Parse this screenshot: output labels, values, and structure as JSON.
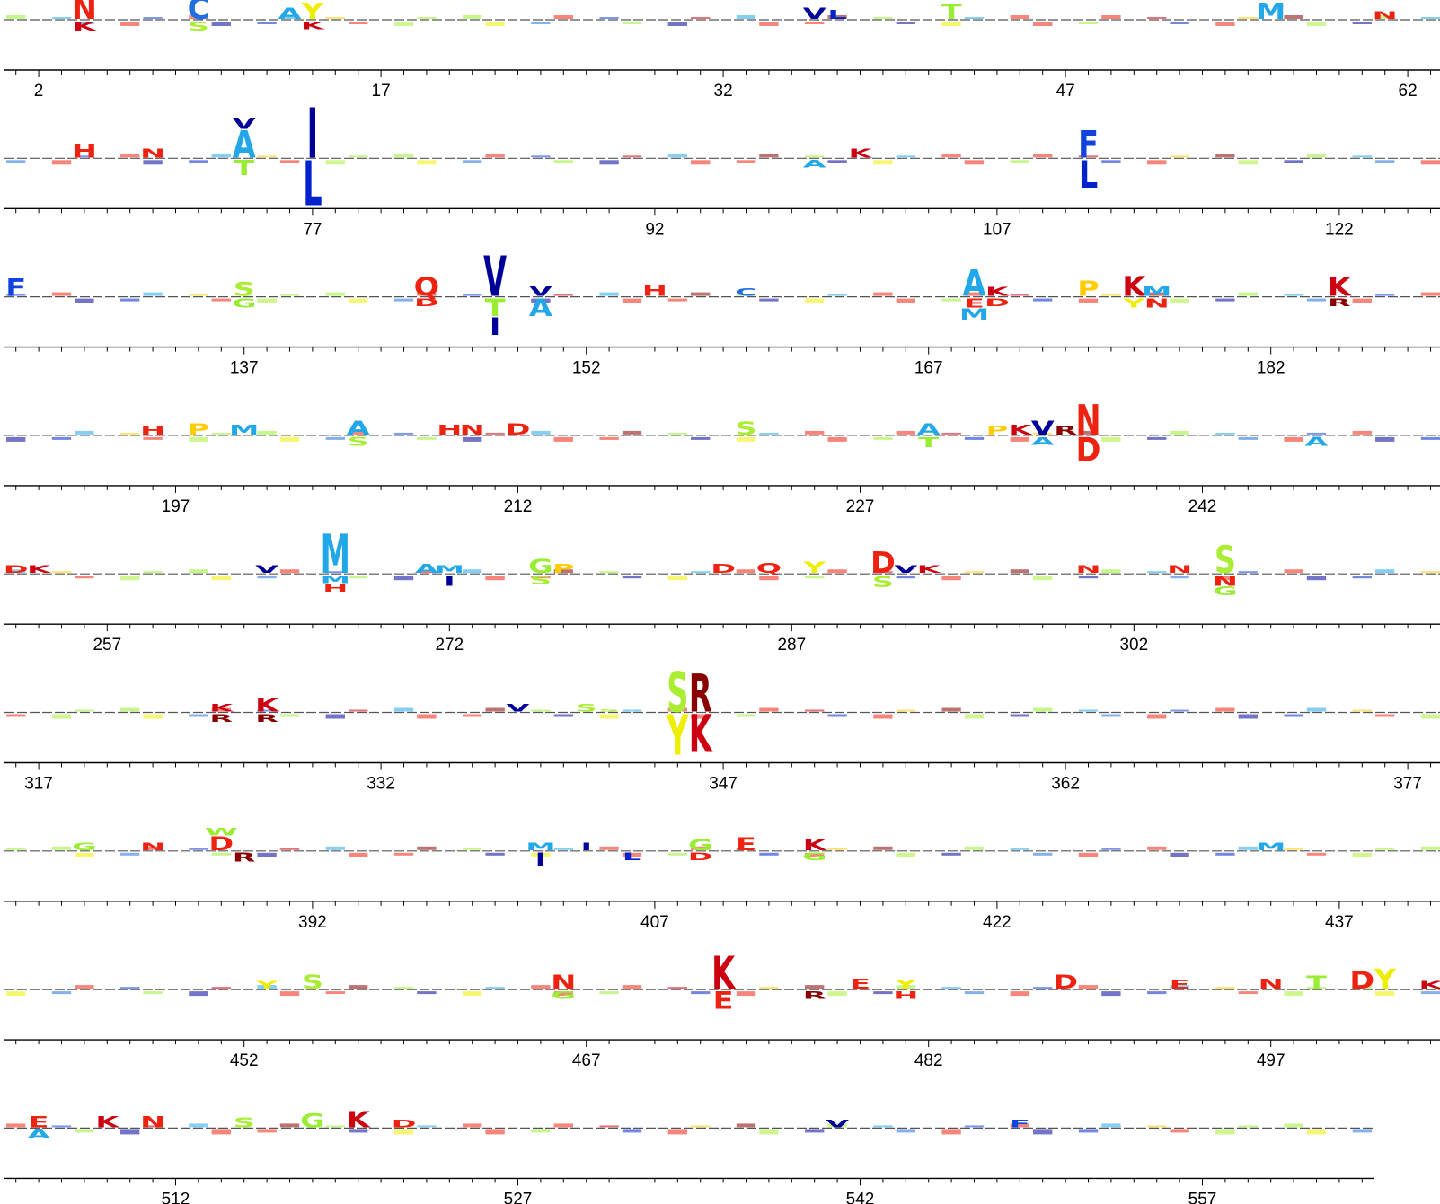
{
  "chart_data": {
    "type": "sequence-logo",
    "title": "",
    "xlabel": "",
    "ylabel": "",
    "tick_labels": [
      "2",
      "17",
      "32",
      "47",
      "62",
      "77",
      "92",
      "107",
      "122",
      "137",
      "152",
      "167",
      "182",
      "197",
      "212",
      "227",
      "242",
      "257",
      "272",
      "287",
      "302",
      "317",
      "332",
      "347",
      "362",
      "377",
      "392",
      "407",
      "422",
      "437",
      "452",
      "467",
      "482",
      "497",
      "512",
      "527",
      "542",
      "557"
    ],
    "rows": [
      {
        "first_position": 1,
        "label_positions": [
          2,
          17,
          32,
          47,
          62
        ]
      },
      {
        "first_position": 64,
        "label_positions": [
          77,
          92,
          107,
          122
        ]
      },
      {
        "first_position": 127,
        "label_positions": [
          137,
          152,
          167,
          182
        ]
      },
      {
        "first_position": 190,
        "label_positions": [
          197,
          212,
          227,
          242
        ]
      },
      {
        "first_position": 253,
        "label_positions": [
          257,
          272,
          287,
          302
        ]
      },
      {
        "first_position": 316,
        "label_positions": [
          317,
          332,
          347,
          362,
          377
        ]
      },
      {
        "first_position": 379,
        "label_positions": [
          392,
          407,
          422,
          437
        ]
      },
      {
        "first_position": 442,
        "label_positions": [
          452,
          467,
          482,
          497
        ]
      },
      {
        "first_position": 505,
        "last_position": 564,
        "label_positions": [
          512,
          527,
          542,
          557
        ]
      }
    ],
    "residue_colors": {
      "A": "#22a8e8",
      "C": "#1f6fe0",
      "D": "#ee2211",
      "E": "#ee2211",
      "F": "#1144dd",
      "G": "#99ee33",
      "H": "#ee2211",
      "I": "#000099",
      "K": "#cc0011",
      "L": "#0022cc",
      "M": "#22a8e8",
      "N": "#ee2211",
      "P": "#ffcc00",
      "Q": "#ee2211",
      "R": "#880000",
      "S": "#aaee33",
      "T": "#99ee33",
      "V": "#000099",
      "W": "#99ee33",
      "Y": "#eeee00"
    },
    "glyphs": [
      {
        "pos": 4,
        "letter": "N",
        "height": 0.85
      },
      {
        "pos": 4,
        "letter": "K",
        "height": -0.35
      },
      {
        "pos": 9,
        "letter": "C",
        "height": 0.85
      },
      {
        "pos": 9,
        "letter": "S",
        "height": -0.35
      },
      {
        "pos": 13,
        "letter": "A",
        "height": 0.45
      },
      {
        "pos": 14,
        "letter": "Y",
        "height": 0.65
      },
      {
        "pos": 14,
        "letter": "K",
        "height": -0.3
      },
      {
        "pos": 36,
        "letter": "V",
        "height": 0.45
      },
      {
        "pos": 37,
        "letter": "L",
        "height": 0.35
      },
      {
        "pos": 42,
        "letter": "T",
        "height": 0.6
      },
      {
        "pos": 56,
        "letter": "M",
        "height": 0.65
      },
      {
        "pos": 61,
        "letter": "N",
        "height": 0.3
      },
      {
        "pos": 67,
        "letter": "H",
        "height": 0.55
      },
      {
        "pos": 70,
        "letter": "N",
        "height": 0.35
      },
      {
        "pos": 74,
        "letter": "A",
        "height": 1.1
      },
      {
        "pos": 74,
        "letter": "V",
        "height": 0.45
      },
      {
        "pos": 74,
        "letter": "T",
        "height": -0.6
      },
      {
        "pos": 77,
        "letter": "I",
        "height": 2.0
      },
      {
        "pos": 77,
        "letter": "L",
        "height": -1.8
      },
      {
        "pos": 99,
        "letter": "A",
        "height": -0.3
      },
      {
        "pos": 101,
        "letter": "K",
        "height": 0.35
      },
      {
        "pos": 111,
        "letter": "F",
        "height": 1.1
      },
      {
        "pos": 111,
        "letter": "L",
        "height": -1.1
      },
      {
        "pos": 127,
        "letter": "F",
        "height": 0.7
      },
      {
        "pos": 137,
        "letter": "S",
        "height": 0.55
      },
      {
        "pos": 137,
        "letter": "G",
        "height": -0.35
      },
      {
        "pos": 145,
        "letter": "Q",
        "height": 0.75
      },
      {
        "pos": 145,
        "letter": "D",
        "height": -0.3
      },
      {
        "pos": 148,
        "letter": "V",
        "height": 1.6
      },
      {
        "pos": 148,
        "letter": "T",
        "height": -0.7
      },
      {
        "pos": 148,
        "letter": "I",
        "height": -0.7
      },
      {
        "pos": 150,
        "letter": "V",
        "height": 0.4
      },
      {
        "pos": 150,
        "letter": "A",
        "height": -0.7
      },
      {
        "pos": 155,
        "letter": "H",
        "height": 0.45
      },
      {
        "pos": 159,
        "letter": "C",
        "height": 0.3
      },
      {
        "pos": 169,
        "letter": "A",
        "height": 1.05
      },
      {
        "pos": 169,
        "letter": "E",
        "height": -0.35
      },
      {
        "pos": 169,
        "letter": "M",
        "height": -0.45
      },
      {
        "pos": 170,
        "letter": "K",
        "height": 0.35
      },
      {
        "pos": 170,
        "letter": "D",
        "height": -0.3
      },
      {
        "pos": 174,
        "letter": "P",
        "height": 0.6
      },
      {
        "pos": 176,
        "letter": "K",
        "height": 0.8
      },
      {
        "pos": 176,
        "letter": "Y",
        "height": -0.35
      },
      {
        "pos": 177,
        "letter": "M",
        "height": 0.4
      },
      {
        "pos": 177,
        "letter": "N",
        "height": -0.35
      },
      {
        "pos": 185,
        "letter": "K",
        "height": 0.75
      },
      {
        "pos": 185,
        "letter": "R",
        "height": -0.3
      },
      {
        "pos": 196,
        "letter": "H",
        "height": 0.35
      },
      {
        "pos": 198,
        "letter": "P",
        "height": 0.45
      },
      {
        "pos": 200,
        "letter": "M",
        "height": 0.4
      },
      {
        "pos": 205,
        "letter": "A",
        "height": 0.55
      },
      {
        "pos": 205,
        "letter": "S",
        "height": -0.35
      },
      {
        "pos": 209,
        "letter": "H",
        "height": 0.4
      },
      {
        "pos": 210,
        "letter": "N",
        "height": 0.4
      },
      {
        "pos": 212,
        "letter": "D",
        "height": 0.45
      },
      {
        "pos": 222,
        "letter": "S",
        "height": 0.5
      },
      {
        "pos": 230,
        "letter": "A",
        "height": 0.45
      },
      {
        "pos": 230,
        "letter": "T",
        "height": -0.4
      },
      {
        "pos": 233,
        "letter": "P",
        "height": 0.35
      },
      {
        "pos": 234,
        "letter": "K",
        "height": 0.4
      },
      {
        "pos": 235,
        "letter": "V",
        "height": 0.55
      },
      {
        "pos": 235,
        "letter": "A",
        "height": -0.3
      },
      {
        "pos": 236,
        "letter": "R",
        "height": 0.35
      },
      {
        "pos": 237,
        "letter": "N",
        "height": 1.2
      },
      {
        "pos": 237,
        "letter": "D",
        "height": -0.95
      },
      {
        "pos": 247,
        "letter": "A",
        "height": -0.35
      },
      {
        "pos": 253,
        "letter": "D",
        "height": 0.3
      },
      {
        "pos": 254,
        "letter": "K",
        "height": 0.3
      },
      {
        "pos": 264,
        "letter": "V",
        "height": 0.3
      },
      {
        "pos": 267,
        "letter": "M",
        "height": 1.55
      },
      {
        "pos": 267,
        "letter": "M",
        "height": -0.3
      },
      {
        "pos": 267,
        "letter": "H",
        "height": -0.3
      },
      {
        "pos": 271,
        "letter": "A",
        "height": 0.35
      },
      {
        "pos": 272,
        "letter": "M",
        "height": 0.3
      },
      {
        "pos": 272,
        "letter": "I",
        "height": -0.4
      },
      {
        "pos": 276,
        "letter": "G",
        "height": 0.55
      },
      {
        "pos": 276,
        "letter": "S",
        "height": -0.35
      },
      {
        "pos": 277,
        "letter": "P",
        "height": 0.35
      },
      {
        "pos": 284,
        "letter": "D",
        "height": 0.35
      },
      {
        "pos": 286,
        "letter": "Q",
        "height": 0.4
      },
      {
        "pos": 288,
        "letter": "Y",
        "height": 0.45
      },
      {
        "pos": 291,
        "letter": "D",
        "height": 0.85
      },
      {
        "pos": 291,
        "letter": "S",
        "height": -0.45
      },
      {
        "pos": 292,
        "letter": "V",
        "height": 0.3
      },
      {
        "pos": 293,
        "letter": "K",
        "height": 0.3
      },
      {
        "pos": 300,
        "letter": "N",
        "height": 0.3
      },
      {
        "pos": 304,
        "letter": "N",
        "height": 0.3
      },
      {
        "pos": 306,
        "letter": "S",
        "height": 1.1
      },
      {
        "pos": 306,
        "letter": "N",
        "height": -0.4
      },
      {
        "pos": 306,
        "letter": "G",
        "height": -0.35
      },
      {
        "pos": 325,
        "letter": "K",
        "height": 0.3
      },
      {
        "pos": 325,
        "letter": "R",
        "height": -0.3
      },
      {
        "pos": 327,
        "letter": "K",
        "height": 0.55
      },
      {
        "pos": 327,
        "letter": "R",
        "height": -0.3
      },
      {
        "pos": 338,
        "letter": "V",
        "height": 0.3
      },
      {
        "pos": 341,
        "letter": "S",
        "height": 0.3
      },
      {
        "pos": 342,
        "letter": "S",
        "height": 0.1
      },
      {
        "pos": 345,
        "letter": "S",
        "height": 1.6
      },
      {
        "pos": 345,
        "letter": "Y",
        "height": -1.6
      },
      {
        "pos": 346,
        "letter": "R",
        "height": 1.5
      },
      {
        "pos": 346,
        "letter": "K",
        "height": -1.5
      },
      {
        "pos": 382,
        "letter": "G",
        "height": 0.3
      },
      {
        "pos": 385,
        "letter": "N",
        "height": 0.3
      },
      {
        "pos": 388,
        "letter": "D",
        "height": 0.55
      },
      {
        "pos": 388,
        "letter": "W",
        "height": 0.3
      },
      {
        "pos": 389,
        "letter": "R",
        "height": -0.35
      },
      {
        "pos": 402,
        "letter": "I",
        "height": -0.55
      },
      {
        "pos": 402,
        "letter": "M",
        "height": 0.3
      },
      {
        "pos": 404,
        "letter": "I",
        "height": 0.3
      },
      {
        "pos": 406,
        "letter": "L",
        "height": -0.3
      },
      {
        "pos": 409,
        "letter": "G",
        "height": 0.45
      },
      {
        "pos": 409,
        "letter": "D",
        "height": -0.3
      },
      {
        "pos": 411,
        "letter": "E",
        "height": 0.5
      },
      {
        "pos": 414,
        "letter": "K",
        "height": 0.45
      },
      {
        "pos": 414,
        "letter": "G",
        "height": -0.3
      },
      {
        "pos": 434,
        "letter": "M",
        "height": 0.3
      },
      {
        "pos": 453,
        "letter": "Y",
        "height": 0.3
      },
      {
        "pos": 455,
        "letter": "S",
        "height": 0.55
      },
      {
        "pos": 466,
        "letter": "N",
        "height": 0.55
      },
      {
        "pos": 466,
        "letter": "G",
        "height": -0.3
      },
      {
        "pos": 473,
        "letter": "K",
        "height": 1.3
      },
      {
        "pos": 473,
        "letter": "E",
        "height": -0.7
      },
      {
        "pos": 477,
        "letter": "R",
        "height": -0.3
      },
      {
        "pos": 479,
        "letter": "E",
        "height": 0.4
      },
      {
        "pos": 481,
        "letter": "Y",
        "height": 0.35
      },
      {
        "pos": 481,
        "letter": "H",
        "height": -0.3
      },
      {
        "pos": 488,
        "letter": "D",
        "height": 0.55
      },
      {
        "pos": 493,
        "letter": "E",
        "height": 0.35
      },
      {
        "pos": 497,
        "letter": "N",
        "height": 0.4
      },
      {
        "pos": 499,
        "letter": "T",
        "height": 0.5
      },
      {
        "pos": 501,
        "letter": "D",
        "height": 0.7
      },
      {
        "pos": 502,
        "letter": "Y",
        "height": 0.8
      },
      {
        "pos": 504,
        "letter": "K",
        "height": 0.3
      },
      {
        "pos": 506,
        "letter": "E",
        "height": 0.45
      },
      {
        "pos": 506,
        "letter": "A",
        "height": -0.35
      },
      {
        "pos": 509,
        "letter": "K",
        "height": 0.45
      },
      {
        "pos": 511,
        "letter": "N",
        "height": 0.45
      },
      {
        "pos": 515,
        "letter": "S",
        "height": 0.4
      },
      {
        "pos": 518,
        "letter": "G",
        "height": 0.55
      },
      {
        "pos": 520,
        "letter": "K",
        "height": 0.65
      },
      {
        "pos": 522,
        "letter": "D",
        "height": 0.3
      },
      {
        "pos": 541,
        "letter": "V",
        "height": 0.3
      },
      {
        "pos": 549,
        "letter": "F",
        "height": 0.3
      }
    ]
  }
}
